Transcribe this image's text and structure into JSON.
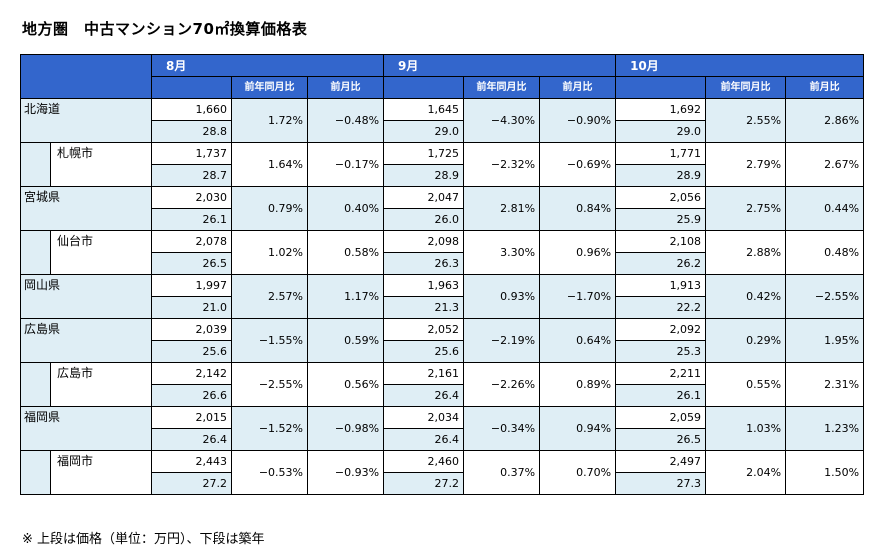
{
  "title": "地方圏　中古マンション70㎡換算価格表",
  "note": "※ 上段は価格（単位：万円）、下段は築年",
  "headers": {
    "months": [
      "8月",
      "9月",
      "10月"
    ],
    "yoy": "前年同月比",
    "mom": "前月比"
  },
  "rows": [
    {
      "name": "北海道",
      "city": false,
      "data": [
        {
          "price": "1,660",
          "age": "28.8",
          "yoy": "1.72%",
          "mom": "−0.48%"
        },
        {
          "price": "1,645",
          "age": "29.0",
          "yoy": "−4.30%",
          "mom": "−0.90%"
        },
        {
          "price": "1,692",
          "age": "29.0",
          "yoy": "2.55%",
          "mom": "2.86%"
        }
      ]
    },
    {
      "name": "札幌市",
      "city": true,
      "data": [
        {
          "price": "1,737",
          "age": "28.7",
          "yoy": "1.64%",
          "mom": "−0.17%"
        },
        {
          "price": "1,725",
          "age": "28.9",
          "yoy": "−2.32%",
          "mom": "−0.69%"
        },
        {
          "price": "1,771",
          "age": "28.9",
          "yoy": "2.79%",
          "mom": "2.67%"
        }
      ]
    },
    {
      "name": "宮城県",
      "city": false,
      "data": [
        {
          "price": "2,030",
          "age": "26.1",
          "yoy": "0.79%",
          "mom": "0.40%"
        },
        {
          "price": "2,047",
          "age": "26.0",
          "yoy": "2.81%",
          "mom": "0.84%"
        },
        {
          "price": "2,056",
          "age": "25.9",
          "yoy": "2.75%",
          "mom": "0.44%"
        }
      ]
    },
    {
      "name": "仙台市",
      "city": true,
      "data": [
        {
          "price": "2,078",
          "age": "26.5",
          "yoy": "1.02%",
          "mom": "0.58%"
        },
        {
          "price": "2,098",
          "age": "26.3",
          "yoy": "3.30%",
          "mom": "0.96%"
        },
        {
          "price": "2,108",
          "age": "26.2",
          "yoy": "2.88%",
          "mom": "0.48%"
        }
      ]
    },
    {
      "name": "岡山県",
      "city": false,
      "data": [
        {
          "price": "1,997",
          "age": "21.0",
          "yoy": "2.57%",
          "mom": "1.17%"
        },
        {
          "price": "1,963",
          "age": "21.3",
          "yoy": "0.93%",
          "mom": "−1.70%"
        },
        {
          "price": "1,913",
          "age": "22.2",
          "yoy": "0.42%",
          "mom": "−2.55%"
        }
      ]
    },
    {
      "name": "広島県",
      "city": false,
      "data": [
        {
          "price": "2,039",
          "age": "25.6",
          "yoy": "−1.55%",
          "mom": "0.59%"
        },
        {
          "price": "2,052",
          "age": "25.6",
          "yoy": "−2.19%",
          "mom": "0.64%"
        },
        {
          "price": "2,092",
          "age": "25.3",
          "yoy": "0.29%",
          "mom": "1.95%"
        }
      ]
    },
    {
      "name": "広島市",
      "city": true,
      "data": [
        {
          "price": "2,142",
          "age": "26.6",
          "yoy": "−2.55%",
          "mom": "0.56%"
        },
        {
          "price": "2,161",
          "age": "26.4",
          "yoy": "−2.26%",
          "mom": "0.89%"
        },
        {
          "price": "2,211",
          "age": "26.1",
          "yoy": "0.55%",
          "mom": "2.31%"
        }
      ]
    },
    {
      "name": "福岡県",
      "city": false,
      "data": [
        {
          "price": "2,015",
          "age": "26.4",
          "yoy": "−1.52%",
          "mom": "−0.98%"
        },
        {
          "price": "2,034",
          "age": "26.4",
          "yoy": "−0.34%",
          "mom": "0.94%"
        },
        {
          "price": "2,059",
          "age": "26.5",
          "yoy": "1.03%",
          "mom": "1.23%"
        }
      ]
    },
    {
      "name": "福岡市",
      "city": true,
      "data": [
        {
          "price": "2,443",
          "age": "27.2",
          "yoy": "−0.53%",
          "mom": "−0.93%"
        },
        {
          "price": "2,460",
          "age": "27.2",
          "yoy": "0.37%",
          "mom": "0.70%"
        },
        {
          "price": "2,497",
          "age": "27.3",
          "yoy": "2.04%",
          "mom": "1.50%"
        }
      ]
    }
  ]
}
